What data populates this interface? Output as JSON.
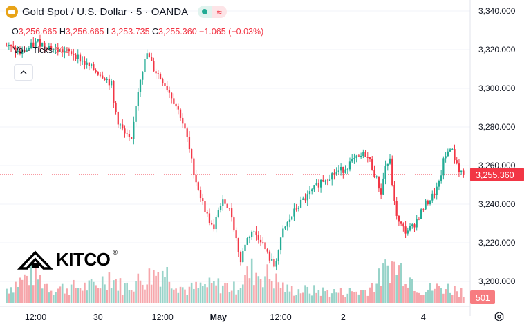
{
  "header": {
    "title": "Gold Spot / U.S. Dollar · 5 · OANDA",
    "wave_symbol": "≈",
    "open_key": "O",
    "open": "3,256.665",
    "high_key": "H",
    "high": "3,256.665",
    "low_key": "L",
    "low": "3,253.735",
    "close_key": "C",
    "close": "3,255.360",
    "change": "−1.065 (−0.03%)"
  },
  "volume": {
    "label": "Vol · Ticks",
    "value": "501"
  },
  "logo": {
    "text": "KITCO",
    "reg": "®"
  },
  "icons": {
    "coin": "gold-coin-icon",
    "collapse": "chevron-up-icon",
    "settings": "gear-icon",
    "logo": "kitco-logo-icon"
  },
  "colors": {
    "up": "#22ab94",
    "down": "#f23645",
    "vol_up": "#98d3c9",
    "vol_down": "#f6a6ab",
    "price_line": "#f23645",
    "grid": "#f0f3fa",
    "axis_text": "#131722"
  },
  "chart_data": {
    "type": "candlestick",
    "title": "Gold Spot / U.S. Dollar · 5 · OANDA",
    "y_ticks": [
      "3,200.000",
      "3,220.000",
      "3,240.000",
      "3,260.000",
      "3,280.000",
      "3,300.000",
      "3,320.000",
      "3,340.000"
    ],
    "y_tick_values": [
      3200,
      3220,
      3240,
      3260,
      3280,
      3300,
      3320,
      3340
    ],
    "ylim": [
      3190,
      3343
    ],
    "x_ticks": [
      "12:00",
      "30",
      "12:00",
      "May",
      "12:00",
      "2",
      "4"
    ],
    "x_tick_bold": [
      false,
      false,
      false,
      true,
      false,
      false,
      false
    ],
    "x_tick_index": [
      13,
      41,
      70,
      95,
      123,
      151,
      187
    ],
    "current_price": 3255.36,
    "current_price_label": "3,255.360",
    "current_volume": 501,
    "current_volume_label": "501",
    "price_path": [
      [
        0,
        3322
      ],
      [
        6,
        3318
      ],
      [
        14,
        3324
      ],
      [
        22,
        3320
      ],
      [
        30,
        3318
      ],
      [
        36,
        3312
      ],
      [
        44,
        3306
      ],
      [
        47,
        3302
      ],
      [
        48,
        3292
      ],
      [
        50,
        3283
      ],
      [
        53,
        3276
      ],
      [
        56,
        3272
      ],
      [
        58,
        3292
      ],
      [
        60,
        3306
      ],
      [
        63,
        3318
      ],
      [
        66,
        3310
      ],
      [
        70,
        3304
      ],
      [
        74,
        3296
      ],
      [
        78,
        3286
      ],
      [
        81,
        3274
      ],
      [
        83,
        3262
      ],
      [
        85,
        3252
      ],
      [
        87,
        3244
      ],
      [
        90,
        3234
      ],
      [
        93,
        3226
      ],
      [
        95,
        3238
      ],
      [
        98,
        3242
      ],
      [
        101,
        3234
      ],
      [
        103,
        3222
      ],
      [
        105,
        3210
      ],
      [
        107,
        3220
      ],
      [
        110,
        3226
      ],
      [
        114,
        3222
      ],
      [
        117,
        3214
      ],
      [
        120,
        3208
      ],
      [
        122,
        3216
      ],
      [
        124,
        3226
      ],
      [
        127,
        3232
      ],
      [
        130,
        3238
      ],
      [
        133,
        3242
      ],
      [
        135,
        3244
      ],
      [
        138,
        3248
      ],
      [
        141,
        3252
      ],
      [
        144,
        3254
      ],
      [
        147,
        3256
      ],
      [
        151,
        3258
      ],
      [
        155,
        3262
      ],
      [
        158,
        3264
      ],
      [
        161,
        3266
      ],
      [
        163,
        3262
      ],
      [
        165,
        3256
      ],
      [
        168,
        3246
      ],
      [
        170,
        3260
      ],
      [
        172,
        3262
      ],
      [
        174,
        3240
      ],
      [
        176,
        3230
      ],
      [
        179,
        3226
      ],
      [
        182,
        3228
      ],
      [
        185,
        3234
      ],
      [
        188,
        3240
      ],
      [
        191,
        3244
      ],
      [
        194,
        3250
      ],
      [
        196,
        3262
      ],
      [
        199,
        3270
      ],
      [
        201,
        3264
      ],
      [
        203,
        3258
      ],
      [
        205,
        3255.36
      ]
    ],
    "volume_profile": [
      [
        0,
        24
      ],
      [
        12,
        48
      ],
      [
        20,
        24
      ],
      [
        30,
        26
      ],
      [
        40,
        28
      ],
      [
        46,
        46
      ],
      [
        52,
        26
      ],
      [
        62,
        40
      ],
      [
        70,
        55
      ],
      [
        80,
        22
      ],
      [
        90,
        28
      ],
      [
        97,
        30
      ],
      [
        102,
        24
      ],
      [
        110,
        52
      ],
      [
        118,
        44
      ],
      [
        126,
        22
      ],
      [
        140,
        20
      ],
      [
        150,
        18
      ],
      [
        160,
        20
      ],
      [
        166,
        34
      ],
      [
        172,
        62
      ],
      [
        178,
        54
      ],
      [
        186,
        22
      ],
      [
        196,
        26
      ],
      [
        205,
        20
      ]
    ],
    "volume_max": 110
  }
}
